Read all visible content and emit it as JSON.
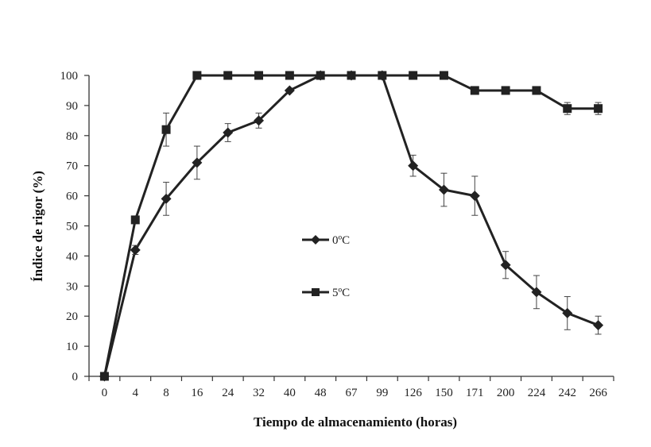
{
  "chart_data": {
    "type": "line",
    "title": "",
    "xlabel": "Tiempo de almacenamiento (horas)",
    "ylabel": "Índice de rigor  (%)",
    "categories": [
      "0",
      "4",
      "8",
      "16",
      "24",
      "32",
      "40",
      "48",
      "67",
      "99",
      "126",
      "150",
      "171",
      "200",
      "224",
      "242",
      "266"
    ],
    "ylim": [
      0,
      100
    ],
    "yticks": [
      0,
      10,
      20,
      30,
      40,
      50,
      60,
      70,
      80,
      90,
      100
    ],
    "grid": false,
    "legend_position": "center",
    "series": [
      {
        "name": "0ºC",
        "marker": "diamond",
        "color": "#222222",
        "values": [
          0,
          42,
          59,
          71,
          81,
          85,
          95,
          100,
          100,
          100,
          70,
          62,
          60,
          37,
          28,
          21,
          17
        ],
        "errors": [
          0,
          1.5,
          5.5,
          5.5,
          3,
          2.5,
          0,
          0,
          0,
          0,
          3.5,
          5.5,
          6.5,
          4.5,
          5.5,
          5.5,
          3
        ]
      },
      {
        "name": "5ºC",
        "marker": "square",
        "color": "#222222",
        "values": [
          0,
          52,
          82,
          100,
          100,
          100,
          100,
          100,
          100,
          100,
          100,
          100,
          95,
          95,
          95,
          89,
          89
        ],
        "errors": [
          0,
          0,
          5.5,
          0,
          0,
          0,
          0,
          0,
          0,
          0,
          0,
          0,
          0,
          0,
          0,
          2,
          2
        ]
      }
    ]
  }
}
